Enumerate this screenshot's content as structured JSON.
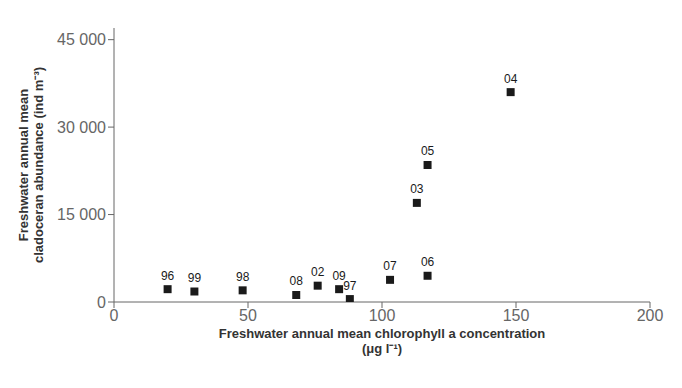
{
  "chart_data": {
    "type": "scatter",
    "x_label": "Freshwater annual mean chlorophyll a  concentration\n(μg l⁻¹)",
    "y_label": "Freshwater annual mean\ncladoceran abundance (ind m⁻³)",
    "x": [
      20,
      30,
      48,
      68,
      76,
      84,
      88,
      103,
      117,
      113,
      117,
      148
    ],
    "values": [
      2200,
      1800,
      2000,
      1200,
      2800,
      2200,
      500,
      3800,
      4500,
      17000,
      23500,
      36000
    ],
    "labels": [
      "96",
      "99",
      "98",
      "08",
      "02",
      "09",
      "97",
      "07",
      "06",
      "03",
      "05",
      "04"
    ],
    "color": "#1a1a1a",
    "marker": "square",
    "xlim": [
      0,
      200
    ],
    "ylim": [
      0,
      47000
    ],
    "xticks": [
      0,
      50,
      100,
      150,
      200
    ],
    "yticks": [
      0,
      {
        "value": 15000,
        "label": "15 000"
      },
      {
        "value": 30000,
        "label": "30 000"
      },
      {
        "value": 45000,
        "label": "45 000"
      }
    ],
    "grid": false
  }
}
